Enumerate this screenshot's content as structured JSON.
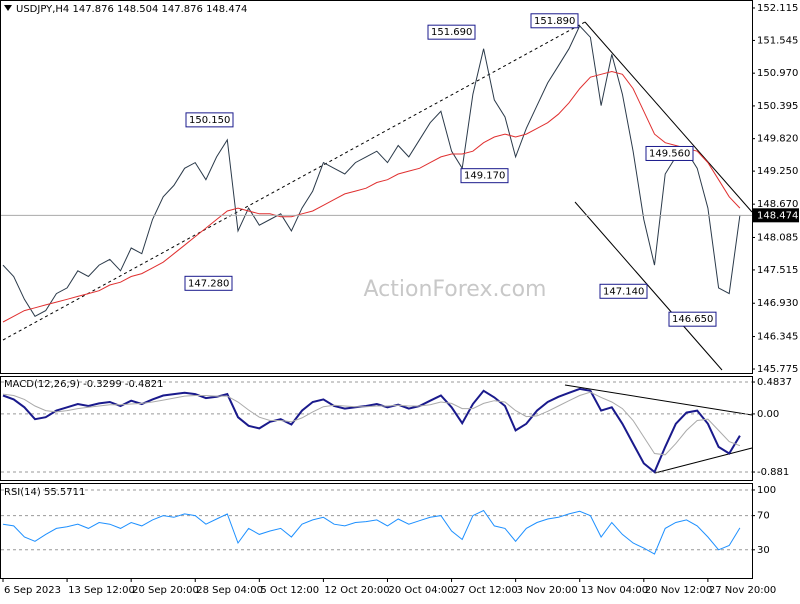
{
  "chart_data": [
    {
      "type": "line",
      "title": "USDJPY,H4  147.876 148.504 147.876 148.474",
      "watermark": "ActionForex.com",
      "ylim": [
        145.705,
        152.255
      ],
      "yticks": [
        152.115,
        151.545,
        {
          "value": 150.97,
          "label": "150.970"
        },
        150.395,
        {
          "value": 149.82,
          "label": "149.820"
        },
        {
          "value": 149.25,
          "label": "149.250"
        },
        {
          "value": 148.67,
          "label": "148.670"
        },
        148.085,
        147.515,
        {
          "value": 146.93,
          "label": "146.930"
        },
        146.345,
        145.775
      ],
      "series": [
        {
          "name": "USDJPY",
          "color": "#2b3a4a",
          "values": [
            147.6,
            147.4,
            147.0,
            146.7,
            146.8,
            147.1,
            147.2,
            147.5,
            147.4,
            147.6,
            147.7,
            147.5,
            147.9,
            147.8,
            148.4,
            148.8,
            149.0,
            149.3,
            149.4,
            149.1,
            149.5,
            149.8,
            148.2,
            148.6,
            148.3,
            148.4,
            148.5,
            148.2,
            148.6,
            148.9,
            149.4,
            149.3,
            149.2,
            149.4,
            149.5,
            149.6,
            149.4,
            149.7,
            149.5,
            149.8,
            150.1,
            150.3,
            149.6,
            149.3,
            150.6,
            151.4,
            150.5,
            150.2,
            149.5,
            150.0,
            150.4,
            150.8,
            151.1,
            151.4,
            151.8,
            151.6,
            150.4,
            151.3,
            150.6,
            149.6,
            148.4,
            147.6,
            149.2,
            149.5,
            149.6,
            149.3,
            148.6,
            147.2,
            147.1,
            148.474
          ]
        },
        {
          "name": "MA",
          "color": "#e03030",
          "values": [
            146.6,
            146.7,
            146.8,
            146.85,
            146.9,
            146.95,
            147.0,
            147.05,
            147.1,
            147.15,
            147.25,
            147.3,
            147.4,
            147.45,
            147.55,
            147.65,
            147.8,
            147.95,
            148.1,
            148.25,
            148.4,
            148.55,
            148.6,
            148.55,
            148.5,
            148.5,
            148.45,
            148.45,
            148.5,
            148.55,
            148.65,
            148.75,
            148.85,
            148.9,
            148.95,
            149.05,
            149.1,
            149.2,
            149.25,
            149.3,
            149.4,
            149.5,
            149.55,
            149.55,
            149.6,
            149.75,
            149.85,
            149.9,
            149.85,
            149.9,
            150.0,
            150.1,
            150.25,
            150.45,
            150.7,
            150.9,
            150.95,
            151.0,
            150.95,
            150.7,
            150.3,
            149.9,
            149.75,
            149.7,
            149.65,
            149.6,
            149.4,
            149.1,
            148.8,
            148.6
          ]
        }
      ],
      "annotations": [
        {
          "value": 151.89,
          "label": "151.890"
        },
        {
          "value": 151.69,
          "label": "151.690"
        },
        {
          "value": 150.15,
          "label": "150.150"
        },
        {
          "value": 147.28,
          "label": "147.280"
        },
        {
          "value": 149.17,
          "label": "149.170"
        },
        {
          "value": 149.56,
          "label": "149.560"
        },
        {
          "value": 147.14,
          "label": "147.140"
        },
        {
          "value": 146.65,
          "label": "146.650"
        }
      ]
    },
    {
      "type": "line",
      "title": "MACD(12,26,9) -0.3299 -0.4821",
      "ylim": [
        -1.002,
        0.575
      ],
      "yticks": [
        0.4837,
        {
          "value": 0,
          "label": "0.00"
        },
        -0.881
      ],
      "series": [
        {
          "name": "MACD",
          "color": "#1a1a8c",
          "values": [
            0.28,
            0.22,
            0.1,
            -0.08,
            -0.05,
            0.05,
            0.1,
            0.15,
            0.12,
            0.16,
            0.18,
            0.12,
            0.2,
            0.15,
            0.22,
            0.28,
            0.3,
            0.32,
            0.3,
            0.24,
            0.26,
            0.3,
            -0.05,
            -0.18,
            -0.22,
            -0.12,
            -0.08,
            -0.16,
            0.05,
            0.18,
            0.22,
            0.12,
            0.08,
            0.1,
            0.12,
            0.15,
            0.1,
            0.14,
            0.08,
            0.12,
            0.2,
            0.28,
            0.1,
            -0.14,
            0.15,
            0.35,
            0.25,
            0.12,
            -0.25,
            -0.15,
            0.05,
            0.18,
            0.26,
            0.32,
            0.38,
            0.35,
            0.05,
            0.1,
            -0.15,
            -0.45,
            -0.75,
            -0.88,
            -0.5,
            -0.15,
            0.02,
            0.05,
            -0.15,
            -0.5,
            -0.6,
            -0.3299
          ]
        },
        {
          "name": "Signal",
          "color": "#aaaaaa",
          "values": [
            0.3,
            0.28,
            0.22,
            0.12,
            0.05,
            0.03,
            0.05,
            0.08,
            0.1,
            0.12,
            0.14,
            0.14,
            0.15,
            0.16,
            0.18,
            0.21,
            0.24,
            0.27,
            0.28,
            0.28,
            0.27,
            0.27,
            0.18,
            0.06,
            -0.05,
            -0.1,
            -0.1,
            -0.12,
            -0.06,
            0.03,
            0.11,
            0.13,
            0.12,
            0.11,
            0.11,
            0.12,
            0.12,
            0.13,
            0.12,
            0.12,
            0.14,
            0.18,
            0.16,
            0.08,
            0.08,
            0.16,
            0.2,
            0.18,
            0.05,
            -0.04,
            -0.03,
            0.04,
            0.12,
            0.2,
            0.28,
            0.33,
            0.25,
            0.18,
            0.08,
            -0.1,
            -0.35,
            -0.6,
            -0.62,
            -0.45,
            -0.25,
            -0.1,
            -0.08,
            -0.25,
            -0.42,
            -0.4821
          ]
        }
      ]
    },
    {
      "type": "line",
      "title": "RSI(14) 55.5711",
      "ylim": [
        -3,
        107
      ],
      "yticks": [
        100,
        70,
        30
      ],
      "categories": [
        "6 Sep 2023",
        null,
        null,
        null,
        null,
        null,
        "13 Sep 12:00",
        null,
        null,
        null,
        null,
        null,
        "20 Sep 20:00",
        null,
        null,
        null,
        null,
        null,
        "28 Sep 04:00",
        null,
        null,
        null,
        null,
        null,
        "5 Oct 12:00",
        null,
        null,
        null,
        null,
        null,
        "12 Oct 20:00",
        null,
        null,
        null,
        null,
        null,
        "20 Oct 04:00",
        null,
        null,
        null,
        null,
        null,
        "27 Oct 12:00",
        null,
        null,
        null,
        null,
        null,
        "3 Nov 20:00",
        null,
        null,
        null,
        null,
        null,
        "13 Nov 04:00",
        null,
        null,
        null,
        null,
        null,
        "20 Nov 12:00",
        null,
        null,
        null,
        null,
        null,
        "27 Nov 20:00",
        null,
        null,
        null
      ],
      "series": [
        {
          "name": "RSI",
          "color": "#1e90ff",
          "values": [
            60,
            58,
            45,
            40,
            48,
            55,
            57,
            60,
            55,
            62,
            60,
            55,
            62,
            58,
            65,
            70,
            68,
            72,
            70,
            60,
            66,
            72,
            38,
            55,
            48,
            52,
            55,
            45,
            60,
            65,
            68,
            60,
            58,
            62,
            63,
            65,
            58,
            66,
            60,
            64,
            68,
            70,
            52,
            42,
            70,
            76,
            58,
            55,
            40,
            55,
            62,
            66,
            68,
            72,
            75,
            70,
            45,
            62,
            48,
            38,
            32,
            25,
            55,
            62,
            65,
            58,
            45,
            30,
            35,
            55.5711
          ]
        }
      ]
    }
  ]
}
